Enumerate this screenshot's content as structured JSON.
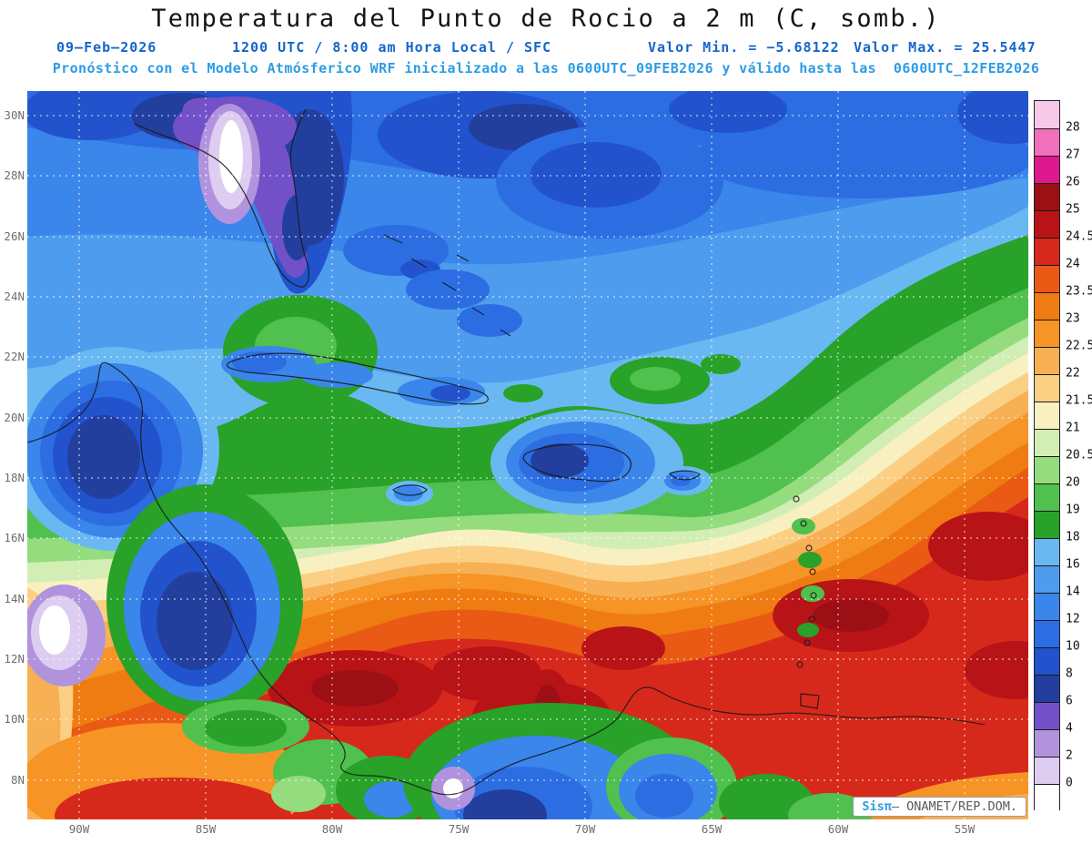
{
  "title": "Temperatura del Punto de Rocio a 2 m (C, somb.)",
  "header": {
    "date": "09–Feb–2026",
    "time": "1200 UTC / 8:00 am Hora Local / SFC",
    "min_label": "Valor Min. = −5.68122",
    "max_label": "Valor Max. = 25.5447",
    "model_line": "Pronóstico con el Modelo Atmósferico WRF inicializado a las 0600UTC_09FEB2026 y válido hasta las  0600UTC_12FEB2026"
  },
  "values": {
    "units": "C",
    "min": -5.68122,
    "max": 25.5447,
    "level": "SFC",
    "valid_from": "0600UTC_09FEB2026",
    "valid_to": "0600UTC_12FEB2026"
  },
  "map": {
    "lat_labels": [
      "30N",
      "28N",
      "26N",
      "24N",
      "22N",
      "20N",
      "18N",
      "16N",
      "14N",
      "12N",
      "10N",
      "8N"
    ],
    "lon_labels": [
      "90W",
      "85W",
      "80W",
      "75W",
      "70W",
      "65W",
      "60W",
      "55W"
    ],
    "watermark_brand": "Sisπ",
    "watermark_text": "– ONAMET/REP.DOM."
  },
  "colorbar": {
    "tick_labels": [
      "28",
      "27",
      "26",
      "25",
      "24.5",
      "24",
      "23.5",
      "23",
      "22.5",
      "22",
      "21.5",
      "21",
      "20.5",
      "20",
      "19",
      "18",
      "16",
      "14",
      "12",
      "10",
      "8",
      "6",
      "4",
      "2",
      "0"
    ],
    "colors": [
      "#f8c8e8",
      "#f070bc",
      "#e01890",
      "#9c0f14",
      "#b81418",
      "#d7291b",
      "#ea5a14",
      "#ef7c12",
      "#f69426",
      "#f8b054",
      "#fbd084",
      "#f9f0c2",
      "#d2eeb4",
      "#94dc7e",
      "#50c04e",
      "#28a228",
      "#6ab8f2",
      "#4e9cee",
      "#3a86ea",
      "#2c6ee2",
      "#2253cc",
      "#233f9e",
      "#7250c8",
      "#b193dd",
      "#ddcdf0",
      "#ffffff"
    ]
  }
}
